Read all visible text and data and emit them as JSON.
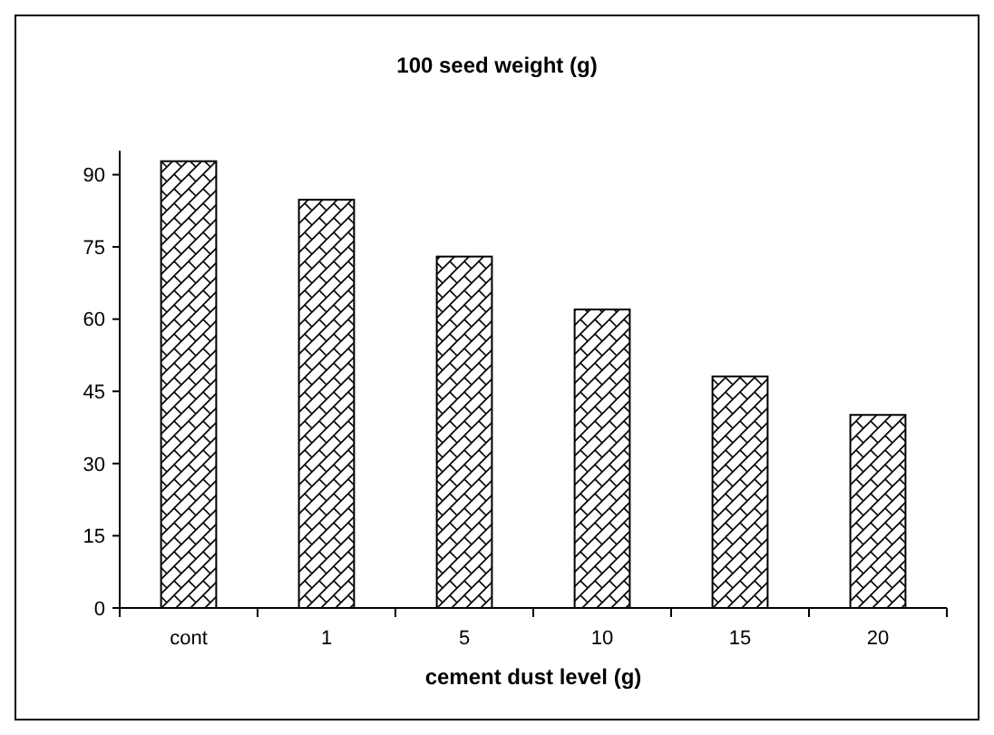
{
  "chart_data": {
    "type": "bar",
    "title": "100 seed weight (g)",
    "xlabel": "cement dust level (g)",
    "categories": [
      "cont",
      "1",
      "5",
      "10",
      "15",
      "20"
    ],
    "values": [
      92.8,
      84.8,
      73,
      62,
      48.1,
      40.1
    ],
    "color": "#000000",
    "ylim": [
      0,
      95
    ],
    "yticks": [
      0,
      15,
      30,
      45,
      60,
      75,
      90
    ],
    "grid": false
  }
}
